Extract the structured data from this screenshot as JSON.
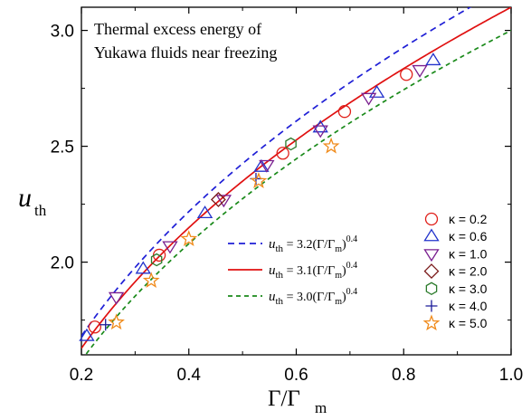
{
  "chart_data": {
    "type": "scatter",
    "title_lines": [
      "Thermal excess energy of",
      "Yukawa fluids near freezing"
    ],
    "xlabel": "Γ/Γ",
    "xlabel_sub": "m",
    "ylabel": "u",
    "ylabel_sub": "th",
    "xlim": [
      0.2,
      1.0
    ],
    "ylim": [
      1.6,
      3.1
    ],
    "xticks": [
      0.2,
      0.4,
      0.6,
      0.8,
      1.0
    ],
    "xtick_labels": [
      "0.2",
      "0.4",
      "0.6",
      "0.8",
      "1.0"
    ],
    "yticks": [
      2.0,
      2.5,
      3.0
    ],
    "ytick_labels": [
      "2.0",
      "2.5",
      "3.0"
    ],
    "fits": [
      {
        "coef": 3.2,
        "exponent": 0.4,
        "color": "#1f1fd6",
        "dash": "7,5",
        "label_sym": "u",
        "label_sub": "th",
        "label_rest": " = 3.2(Γ/Γ",
        "label_sub2": "m",
        "label_close": ")",
        "label_sup": "0.4"
      },
      {
        "coef": 3.1,
        "exponent": 0.4,
        "color": "#e01010",
        "dash": "",
        "label_sym": "u",
        "label_sub": "th",
        "label_rest": " = 3.1(Γ/Γ",
        "label_sub2": "m",
        "label_close": ")",
        "label_sup": "0.4"
      },
      {
        "coef": 3.0,
        "exponent": 0.4,
        "color": "#1a8a1a",
        "dash": "5,4",
        "label_sym": "u",
        "label_sub": "th",
        "label_rest": " = 3.0(Γ/Γ",
        "label_sub2": "m",
        "label_close": ")",
        "label_sup": "0.4"
      }
    ],
    "series": [
      {
        "name": "κ = 0.2",
        "marker": "circle",
        "color": "#e0201a",
        "x": [
          0.225,
          0.345,
          0.575,
          0.69,
          0.805
        ],
        "y": [
          1.72,
          2.03,
          2.47,
          2.65,
          2.81
        ]
      },
      {
        "name": "κ = 0.6",
        "marker": "triangle-up",
        "color": "#2233cc",
        "x": [
          0.21,
          0.315,
          0.43,
          0.535,
          0.645,
          0.75,
          0.855
        ],
        "y": [
          1.68,
          1.97,
          2.21,
          2.41,
          2.58,
          2.73,
          2.87
        ]
      },
      {
        "name": "κ = 1.0",
        "marker": "triangle-down",
        "color": "#7a1f8f",
        "x": [
          0.265,
          0.365,
          0.465,
          0.545,
          0.645,
          0.735,
          0.83
        ],
        "y": [
          1.85,
          2.07,
          2.27,
          2.42,
          2.57,
          2.71,
          2.83
        ]
      },
      {
        "name": "κ = 2.0",
        "marker": "diamond",
        "color": "#7a1a1a",
        "x": [
          0.455
        ],
        "y": [
          2.27
        ]
      },
      {
        "name": "κ = 3.0",
        "marker": "hexagon",
        "color": "#2a7a2a",
        "x": [
          0.34,
          0.59
        ],
        "y": [
          2.01,
          2.51
        ]
      },
      {
        "name": "κ = 4.0",
        "marker": "plus",
        "color": "#1a1a99",
        "x": [
          0.245,
          0.525
        ],
        "y": [
          1.73,
          2.36
        ]
      },
      {
        "name": "κ = 5.0",
        "marker": "star",
        "color": "#f08a1a",
        "x": [
          0.265,
          0.33,
          0.4,
          0.53,
          0.665
        ],
        "y": [
          1.74,
          1.92,
          2.1,
          2.35,
          2.5
        ]
      }
    ]
  }
}
